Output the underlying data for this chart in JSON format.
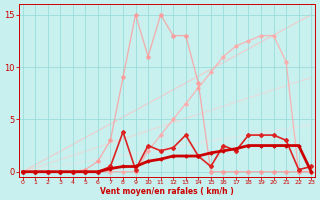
{
  "xlabel": "Vent moyen/en rafales ( km/h )",
  "xlim": [
    -0.3,
    23.3
  ],
  "ylim": [
    -0.5,
    16
  ],
  "yticks": [
    0,
    5,
    10,
    15
  ],
  "xticks": [
    0,
    1,
    2,
    3,
    4,
    5,
    6,
    7,
    8,
    9,
    10,
    11,
    12,
    13,
    14,
    15,
    16,
    17,
    18,
    19,
    20,
    21,
    22,
    23
  ],
  "bg_color": "#c8f0ee",
  "grid_color": "#99dddd",
  "lines": [
    {
      "x": [
        0,
        1,
        2,
        3,
        4,
        5,
        6,
        7,
        8,
        9,
        10,
        11,
        12,
        13,
        14,
        15,
        16,
        17,
        18,
        19,
        20,
        21,
        22,
        23
      ],
      "y": [
        0,
        0,
        0,
        0,
        0,
        0.2,
        1.0,
        3.0,
        9.0,
        15.0,
        11.0,
        15.0,
        13.0,
        13.0,
        8.5,
        0,
        0,
        0,
        0,
        0,
        0,
        0,
        0,
        0
      ],
      "color": "#ff9999",
      "lw": 0.9,
      "ms": 2.0,
      "zorder": 3,
      "alpha": 0.8
    },
    {
      "x": [
        0,
        1,
        2,
        3,
        4,
        5,
        6,
        7,
        8,
        9,
        10,
        11,
        12,
        13,
        14,
        15,
        16,
        17,
        18,
        19,
        20,
        21,
        22,
        23
      ],
      "y": [
        0,
        0,
        0,
        0,
        0,
        0,
        0,
        0,
        0,
        0,
        2.0,
        3.5,
        5.0,
        6.5,
        8.0,
        9.5,
        11.0,
        12.0,
        12.5,
        13.0,
        13.0,
        10.5,
        0,
        0
      ],
      "color": "#ffaaaa",
      "lw": 0.9,
      "ms": 1.8,
      "zorder": 2,
      "alpha": 0.85
    },
    {
      "x": [
        0,
        1,
        2,
        3,
        4,
        5,
        6,
        7,
        8,
        9,
        10,
        11,
        12,
        13,
        14,
        15,
        16,
        17,
        18,
        19,
        20,
        21,
        22,
        23
      ],
      "y": [
        0,
        0,
        0,
        0,
        0,
        0,
        0,
        0.3,
        0.5,
        0.5,
        1.0,
        1.2,
        1.5,
        1.5,
        1.5,
        1.8,
        2.0,
        2.2,
        2.5,
        2.5,
        2.5,
        2.5,
        2.5,
        0
      ],
      "color": "#cc0000",
      "lw": 2.0,
      "ms": 1.5,
      "zorder": 6,
      "alpha": 1.0
    },
    {
      "x": [
        0,
        1,
        2,
        3,
        4,
        5,
        6,
        7,
        8,
        9,
        10,
        11,
        12,
        13,
        14,
        15,
        16,
        17,
        18,
        19,
        20,
        21,
        22,
        23
      ],
      "y": [
        0,
        0,
        0,
        0,
        0,
        0,
        0,
        0.5,
        3.8,
        0.2,
        2.5,
        2.0,
        2.3,
        3.5,
        1.5,
        0.5,
        2.5,
        2.0,
        3.5,
        3.5,
        3.5,
        3.0,
        0.2,
        0.5
      ],
      "color": "#dd2222",
      "lw": 1.2,
      "ms": 2.0,
      "zorder": 5,
      "alpha": 1.0
    }
  ],
  "diag_lines": [
    {
      "x0": 0,
      "y0": 0,
      "x1": 23,
      "y1": 15.0,
      "color": "#ffbbbb",
      "lw": 0.8,
      "alpha": 0.7
    },
    {
      "x0": 0,
      "y0": 0,
      "x1": 23,
      "y1": 9.0,
      "color": "#ffcccc",
      "lw": 0.8,
      "alpha": 0.6
    },
    {
      "x0": 0,
      "y0": 0,
      "x1": 23,
      "y1": 4.5,
      "color": "#ffdddd",
      "lw": 0.7,
      "alpha": 0.5
    }
  ]
}
